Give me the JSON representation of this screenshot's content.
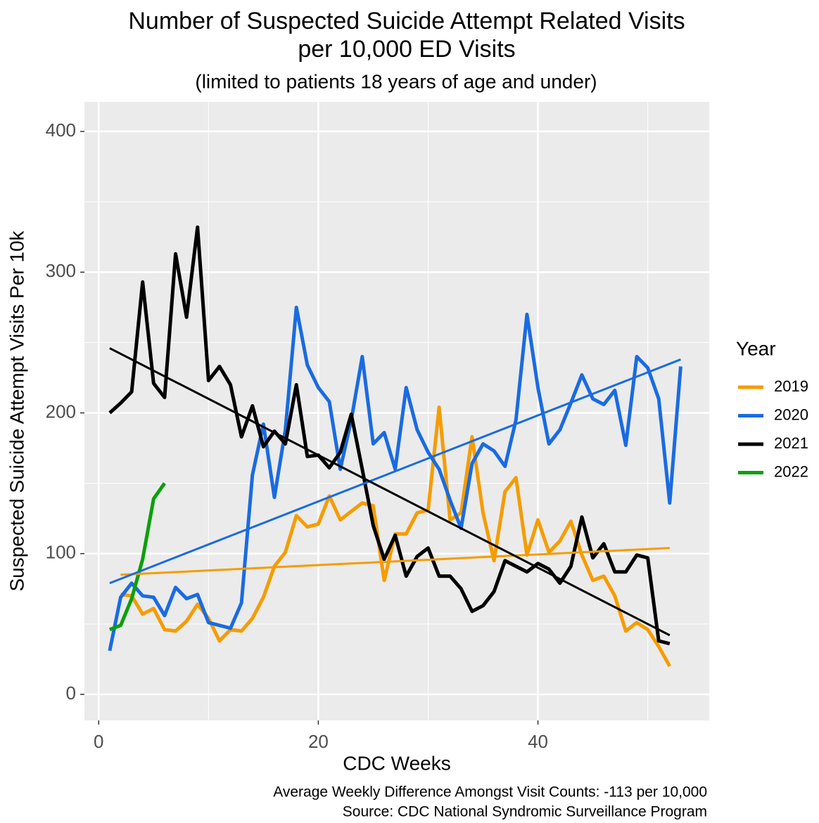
{
  "chart_data": {
    "type": "line",
    "title": [
      "Number of Suspected Suicide Attempt Related Visits",
      "per 10,000 ED Visits"
    ],
    "subtitle": "(limited to patients 18 years of age and under)",
    "x_label": "CDC Weeks",
    "y_label": "Suspected Suicide Attempt Visits Per 10k",
    "caption": [
      "Average Weekly Difference Amongst Visit Counts: -113 per 10,000",
      "Source: CDC National Syndromic Surveillance Program"
    ],
    "legend_title": "Year",
    "legend_position": "right",
    "grid": true,
    "xlim": [
      -1.3,
      55.6
    ],
    "ylim": [
      -18.5,
      421
    ],
    "xticks": [
      0,
      20,
      40
    ],
    "yticks": [
      0,
      100,
      200,
      300,
      400
    ],
    "x_minor_ticks": [
      10,
      30,
      50
    ],
    "y_minor_ticks": [
      50,
      150,
      250,
      350
    ],
    "series": [
      {
        "name": "2019",
        "color": "#f59c00",
        "x": [
          2,
          3,
          4,
          5,
          6,
          7,
          8,
          9,
          10,
          11,
          12,
          13,
          14,
          15,
          16,
          17,
          18,
          19,
          20,
          21,
          22,
          23,
          24,
          25,
          26,
          27,
          28,
          29,
          30,
          31,
          32,
          33,
          34,
          35,
          36,
          37,
          38,
          39,
          40,
          41,
          42,
          43,
          44,
          45,
          46,
          47,
          48,
          49,
          50,
          51,
          52
        ],
        "values": [
          71,
          70,
          57,
          61,
          46,
          45,
          52,
          64,
          54,
          38,
          46,
          45,
          54,
          69,
          91,
          101,
          127,
          119,
          121,
          141,
          124,
          130,
          136,
          134,
          81,
          114,
          114,
          129,
          131,
          204,
          124,
          129,
          183,
          129,
          95,
          144,
          154,
          99,
          124,
          101,
          109,
          123,
          99,
          81,
          84,
          70,
          45,
          51,
          46,
          34,
          20
        ],
        "trend": {
          "x": [
            2,
            52
          ],
          "values": [
            85,
            104
          ]
        }
      },
      {
        "name": "2020",
        "color": "#1a6be0",
        "x": [
          1,
          2,
          3,
          4,
          5,
          6,
          7,
          8,
          9,
          10,
          11,
          12,
          13,
          14,
          15,
          16,
          17,
          18,
          19,
          20,
          21,
          22,
          23,
          24,
          25,
          26,
          27,
          28,
          29,
          30,
          31,
          32,
          33,
          34,
          35,
          36,
          37,
          38,
          39,
          40,
          41,
          42,
          43,
          44,
          45,
          46,
          47,
          48,
          49,
          50,
          51,
          52,
          53
        ],
        "values": [
          31,
          69,
          79,
          70,
          69,
          56,
          76,
          68,
          71,
          51,
          49,
          47,
          65,
          156,
          192,
          140,
          188,
          275,
          234,
          218,
          208,
          160,
          195,
          240,
          178,
          186,
          160,
          218,
          188,
          172,
          160,
          138,
          118,
          164,
          178,
          173,
          162,
          195,
          270,
          218,
          178,
          188,
          207,
          227,
          210,
          206,
          216,
          177,
          240,
          232,
          210,
          136,
          233
        ],
        "trend": {
          "x": [
            1,
            53
          ],
          "values": [
            79,
            238
          ]
        }
      },
      {
        "name": "2021",
        "color": "#000000",
        "x": [
          1,
          2,
          3,
          4,
          5,
          6,
          7,
          8,
          9,
          10,
          11,
          12,
          13,
          14,
          15,
          16,
          17,
          18,
          19,
          20,
          21,
          22,
          23,
          24,
          25,
          26,
          27,
          28,
          29,
          30,
          31,
          32,
          33,
          34,
          35,
          36,
          37,
          38,
          39,
          40,
          41,
          42,
          43,
          44,
          45,
          46,
          47,
          48,
          49,
          50,
          51,
          52
        ],
        "values": [
          200,
          207,
          215,
          293,
          221,
          211,
          313,
          268,
          332,
          223,
          233,
          220,
          183,
          205,
          176,
          187,
          178,
          220,
          169,
          170,
          161,
          172,
          199,
          160,
          120,
          96,
          113,
          84,
          98,
          104,
          84,
          84,
          75,
          59,
          63,
          73,
          95,
          91,
          87,
          93,
          89,
          79,
          91,
          126,
          97,
          107,
          87,
          87,
          99,
          97,
          38,
          36
        ],
        "trend": {
          "x": [
            1,
            52
          ],
          "values": [
            246,
            42
          ]
        }
      },
      {
        "name": "2022",
        "color": "#0aa00a",
        "x": [
          1,
          2,
          3,
          4,
          5,
          6
        ],
        "values": [
          46,
          49,
          68,
          96,
          139,
          150
        ]
      }
    ]
  }
}
